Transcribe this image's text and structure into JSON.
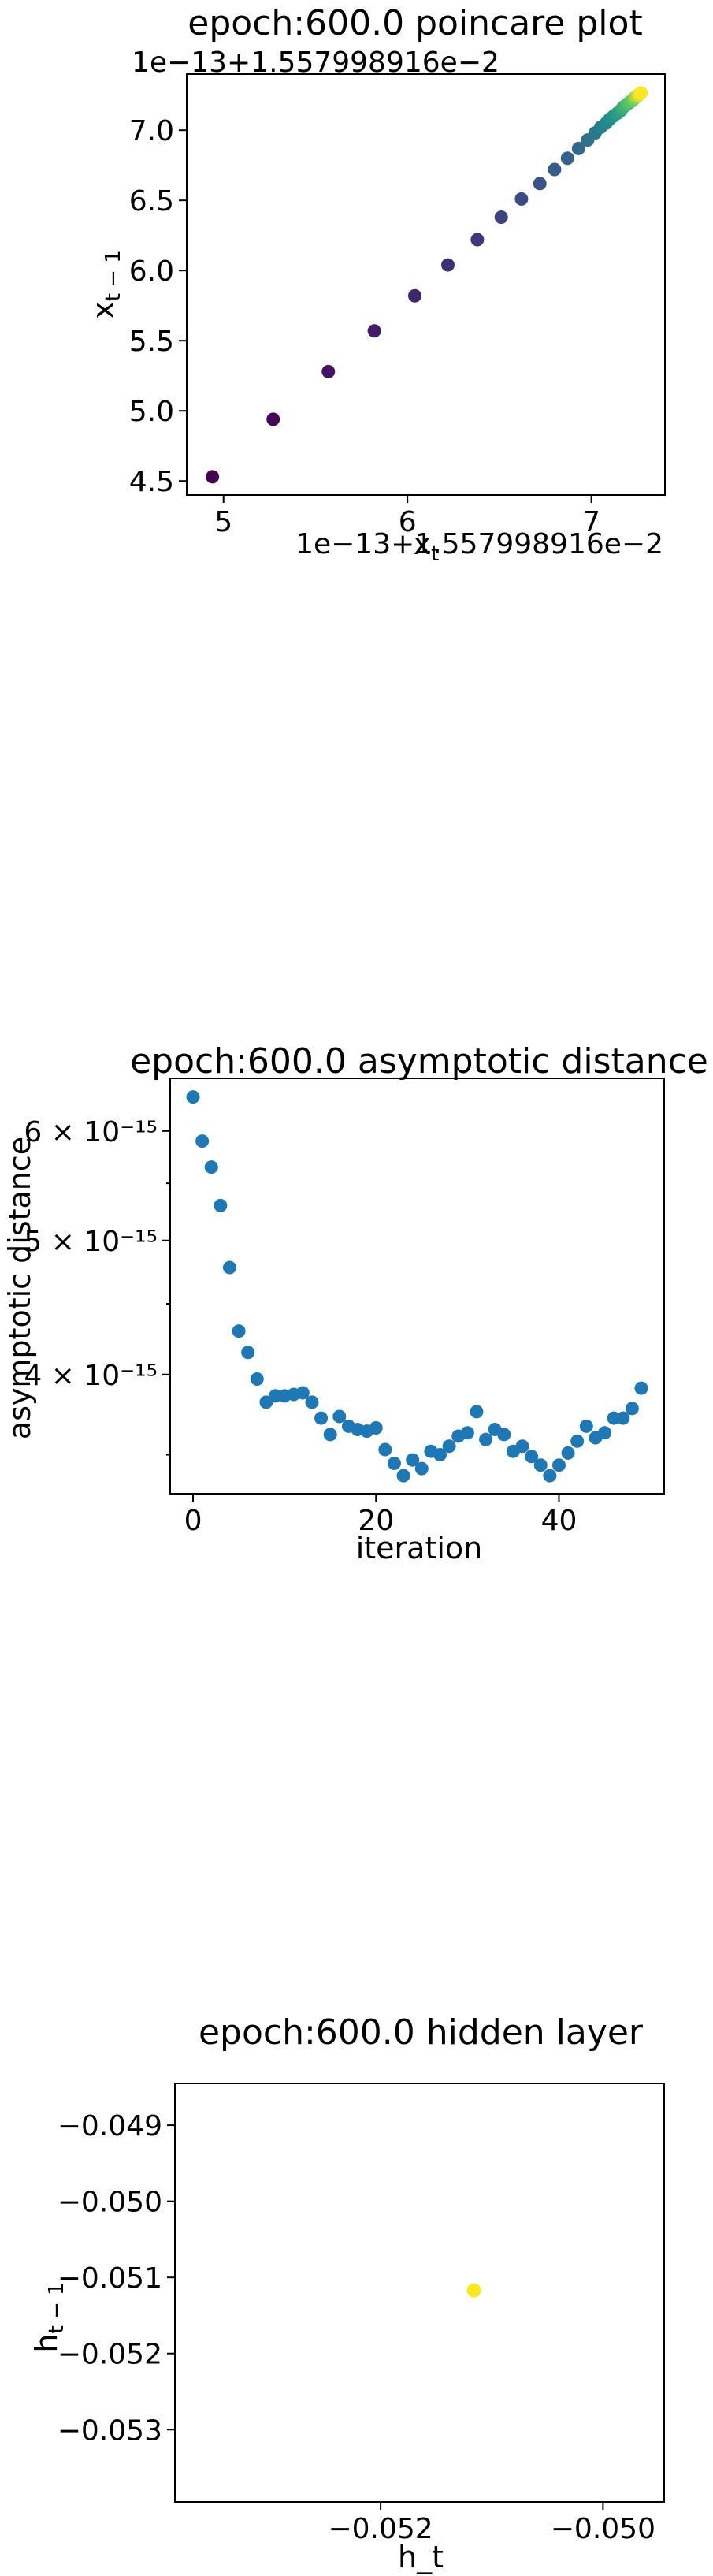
{
  "chart_data": [
    {
      "type": "scatter",
      "title": "epoch:600.0 poincare plot",
      "xlabel": "x_t",
      "ylabel": "x_{t-1}",
      "x_offset_label": "1e−13+1.557998916e−2",
      "y_offset_label": "1e−13+1.557998916e−2",
      "x_ticks": [
        "5",
        "6",
        "7"
      ],
      "y_ticks": [
        "4.5",
        "5.0",
        "5.5",
        "6.0",
        "6.5",
        "7.0"
      ],
      "xlim": [
        4.8,
        7.4
      ],
      "ylim": [
        4.4,
        7.4
      ],
      "color_scale": "viridis",
      "points": [
        {
          "x": 4.94,
          "y": 4.53
        },
        {
          "x": 5.27,
          "y": 4.94
        },
        {
          "x": 5.57,
          "y": 5.28
        },
        {
          "x": 5.82,
          "y": 5.57
        },
        {
          "x": 6.04,
          "y": 5.82
        },
        {
          "x": 6.22,
          "y": 6.04
        },
        {
          "x": 6.38,
          "y": 6.22
        },
        {
          "x": 6.51,
          "y": 6.38
        },
        {
          "x": 6.62,
          "y": 6.51
        },
        {
          "x": 6.72,
          "y": 6.62
        },
        {
          "x": 6.8,
          "y": 6.72
        },
        {
          "x": 6.87,
          "y": 6.8
        },
        {
          "x": 6.93,
          "y": 6.87
        },
        {
          "x": 6.98,
          "y": 6.93
        },
        {
          "x": 7.02,
          "y": 6.98
        },
        {
          "x": 7.05,
          "y": 7.02
        },
        {
          "x": 7.08,
          "y": 7.05
        },
        {
          "x": 7.1,
          "y": 7.08
        },
        {
          "x": 7.12,
          "y": 7.1
        },
        {
          "x": 7.14,
          "y": 7.12
        },
        {
          "x": 7.16,
          "y": 7.14
        },
        {
          "x": 7.17,
          "y": 7.16
        },
        {
          "x": 7.18,
          "y": 7.17
        },
        {
          "x": 7.19,
          "y": 7.18
        },
        {
          "x": 7.2,
          "y": 7.19
        },
        {
          "x": 7.21,
          "y": 7.2
        },
        {
          "x": 7.22,
          "y": 7.21
        },
        {
          "x": 7.23,
          "y": 7.22
        },
        {
          "x": 7.235,
          "y": 7.23
        },
        {
          "x": 7.24,
          "y": 7.235
        },
        {
          "x": 7.245,
          "y": 7.24
        },
        {
          "x": 7.25,
          "y": 7.245
        },
        {
          "x": 7.255,
          "y": 7.25
        },
        {
          "x": 7.26,
          "y": 7.255
        },
        {
          "x": 7.265,
          "y": 7.26
        },
        {
          "x": 7.27,
          "y": 7.265
        }
      ]
    },
    {
      "type": "scatter",
      "title": "epoch:600.0 asymptotic distance",
      "xlabel": "iteration",
      "ylabel": "asymptotic distance",
      "yscale": "log",
      "x_ticks": [
        "0",
        "20",
        "40"
      ],
      "x_tick_values": [
        0,
        20,
        40
      ],
      "y_ticks": [
        "4 × 10⁻¹⁵",
        "5 × 10⁻¹⁵",
        "6 × 10⁻¹⁵"
      ],
      "y_tick_values": [
        4e-15,
        5e-15,
        6e-15
      ],
      "xlim": [
        -2.5,
        51.5
      ],
      "ylim": [
        3.28e-15,
        6.55e-15
      ],
      "color": "#1f77b4",
      "x": [
        0,
        1,
        2,
        3,
        4,
        5,
        6,
        7,
        8,
        9,
        10,
        11,
        12,
        13,
        14,
        15,
        16,
        17,
        18,
        19,
        20,
        21,
        22,
        23,
        24,
        25,
        26,
        27,
        28,
        29,
        30,
        31,
        32,
        33,
        34,
        35,
        36,
        37,
        38,
        39,
        40,
        41,
        42,
        43,
        44,
        45,
        46,
        47,
        48,
        49
      ],
      "values": [
        6.35e-15,
        5.9e-15,
        5.65e-15,
        5.3e-15,
        4.78e-15,
        4.3e-15,
        4.15e-15,
        3.97e-15,
        3.82e-15,
        3.86e-15,
        3.86e-15,
        3.87e-15,
        3.88e-15,
        3.82e-15,
        3.72e-15,
        3.62e-15,
        3.73e-15,
        3.67e-15,
        3.65e-15,
        3.64e-15,
        3.66e-15,
        3.53e-15,
        3.45e-15,
        3.38e-15,
        3.47e-15,
        3.42e-15,
        3.52e-15,
        3.5e-15,
        3.55e-15,
        3.61e-15,
        3.63e-15,
        3.76e-15,
        3.59e-15,
        3.65e-15,
        3.62e-15,
        3.52e-15,
        3.55e-15,
        3.49e-15,
        3.44e-15,
        3.38e-15,
        3.44e-15,
        3.51e-15,
        3.58e-15,
        3.67e-15,
        3.6e-15,
        3.63e-15,
        3.72e-15,
        3.72e-15,
        3.78e-15,
        3.91e-15
      ]
    },
    {
      "type": "scatter",
      "title": "epoch:600.0 hidden layer",
      "xlabel": "h_t",
      "ylabel": "h_{t-1}",
      "x_ticks": [
        "−0.052",
        "−0.050"
      ],
      "x_tick_values": [
        -0.052,
        -0.05
      ],
      "y_ticks": [
        "−0.049",
        "−0.050",
        "−0.051",
        "−0.052",
        "−0.053"
      ],
      "y_tick_values": [
        -0.049,
        -0.05,
        -0.051,
        -0.052,
        -0.053
      ],
      "xlim": [
        -0.05385,
        -0.04945
      ],
      "ylim": [
        -0.05395,
        -0.04845
      ],
      "color": "#fde725",
      "points": [
        {
          "x": -0.05116,
          "y": -0.05117
        }
      ]
    }
  ]
}
